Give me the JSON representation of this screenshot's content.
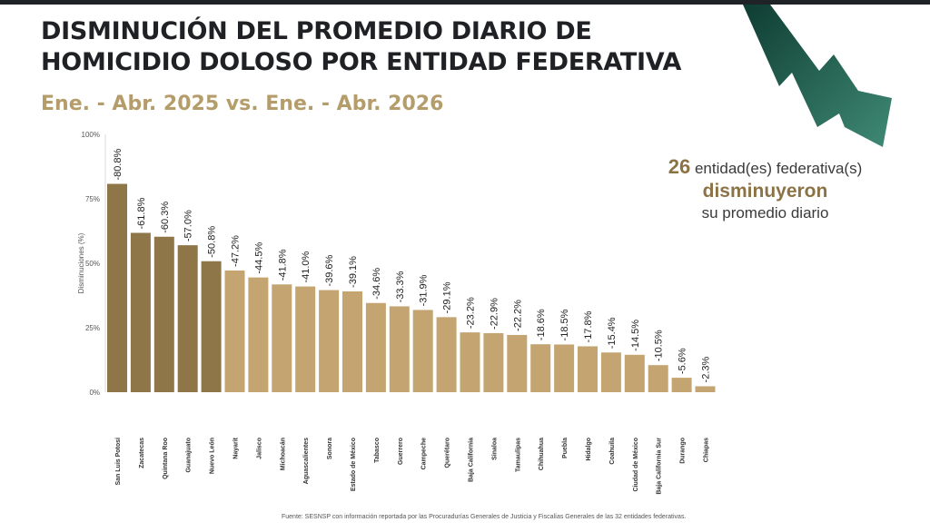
{
  "header": {
    "title": "DISMINUCIÓN DEL PROMEDIO DIARIO DE\nHOMICIDIO DOLOSO POR ENTIDAD FEDERATIVA",
    "subtitle": "Ene. - Abr. 2025 vs. Ene. - Abr. 2026"
  },
  "callout": {
    "count": "26",
    "text1": " entidad(es) federativa(s)",
    "text2": "disminuyeron",
    "text3": "su promedio diario"
  },
  "source": "Fuente: SESNSP con información reportada por las Procuradurías Generales de Justicia y Fiscalías Generales de las 32 entidades federativas.",
  "colors": {
    "bar_top": "#8f7649",
    "bar_rest": "#c4a572",
    "arrow": "#2e6e5c"
  },
  "chart_data": {
    "type": "bar",
    "ylabel": "Disminuciones (%)",
    "ylim": [
      0,
      100
    ],
    "yticks": [
      "0%",
      "25%",
      "50%",
      "75%",
      "100%"
    ],
    "categories": [
      "San Luis Potosí",
      "Zacatecas",
      "Quintana Roo",
      "Guanajuato",
      "Nuevo León",
      "Nayarit",
      "Jalisco",
      "Michoacán",
      "Aguascalientes",
      "Sonora",
      "Estado de México",
      "Tabasco",
      "Guerrero",
      "Campeche",
      "Querétaro",
      "Baja California",
      "Sinaloa",
      "Tamaulipas",
      "Chihuahua",
      "Puebla",
      "Hidalgo",
      "Coahuila",
      "Ciudad de México",
      "Baja California Sur",
      "Durango",
      "Chiapas"
    ],
    "values": [
      80.8,
      61.8,
      60.3,
      57.0,
      50.8,
      47.2,
      44.5,
      41.8,
      41.0,
      39.6,
      39.1,
      34.6,
      33.3,
      31.9,
      29.1,
      23.2,
      22.9,
      22.2,
      18.6,
      18.5,
      17.8,
      15.4,
      14.5,
      10.5,
      5.6,
      2.3
    ],
    "labels": [
      "-80.8%",
      "-61.8%",
      "-60.3%",
      "-57.0%",
      "-50.8%",
      "-47.2%",
      "-44.5%",
      "-41.8%",
      "-41.0%",
      "-39.6%",
      "-39.1%",
      "-34.6%",
      "-33.3%",
      "-31.9%",
      "-29.1%",
      "-23.2%",
      "-22.9%",
      "-22.2%",
      "-18.6%",
      "-18.5%",
      "-17.8%",
      "-15.4%",
      "-14.5%",
      "-10.5%",
      "-5.6%",
      "-2.3%"
    ],
    "highlight_count": 5,
    "grid": false,
    "legend": "none"
  }
}
